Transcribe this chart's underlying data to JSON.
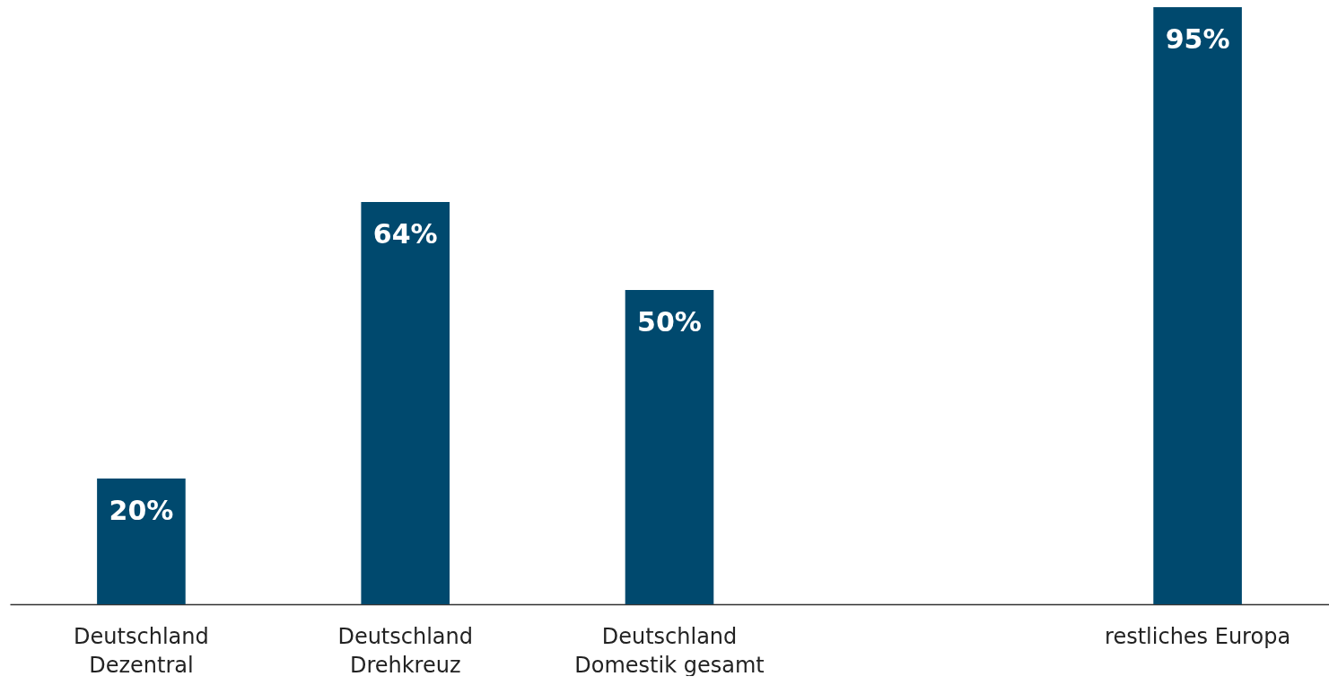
{
  "chart_data": {
    "type": "bar",
    "categories": [
      "Deutschland\nDezentral",
      "Deutschland\nDrehkreuz",
      "Deutschland\nDomestik gesamt",
      null,
      "restliches Europa"
    ],
    "values": [
      20,
      64,
      50,
      null,
      95
    ],
    "value_labels": [
      "20%",
      "64%",
      "50%",
      null,
      "95%"
    ],
    "color": "#00496e"
  }
}
